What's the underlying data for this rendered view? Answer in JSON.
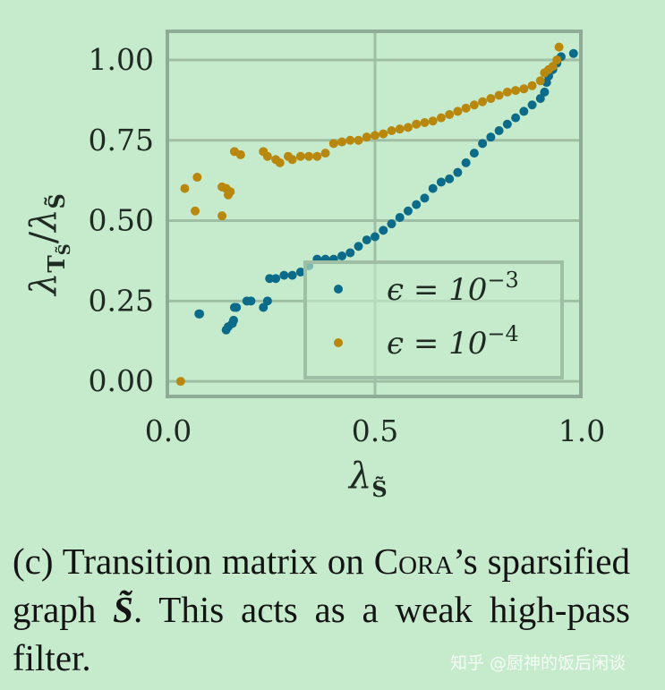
{
  "chart_data": {
    "type": "scatter",
    "xlabel": {
      "base": "λ",
      "sub": "S̃"
    },
    "ylabel": {
      "num_base": "λ",
      "num_sub": "T",
      "num_subsub": "S̃",
      "sep": "/",
      "den_base": "λ",
      "den_sub": "S̃"
    },
    "xlim": [
      0.0,
      1.0
    ],
    "ylim": [
      -0.047,
      1.089
    ],
    "xticks": [
      {
        "value": 0.0,
        "label": "0.0"
      },
      {
        "value": 0.5,
        "label": "0.5"
      },
      {
        "value": 1.0,
        "label": "1.0"
      }
    ],
    "yticks": [
      {
        "value": 0.0,
        "label": "0.00"
      },
      {
        "value": 0.25,
        "label": "0.25"
      },
      {
        "value": 0.5,
        "label": "0.50"
      },
      {
        "value": 0.75,
        "label": "0.75"
      },
      {
        "value": 1.0,
        "label": "1.00"
      }
    ],
    "grid": true,
    "legend_placement": "lower-right",
    "series": [
      {
        "name": "ϵ = 10^−3",
        "label_base": "ϵ = 10",
        "label_exp": "−3",
        "color": "#0b6b88",
        "points": [
          [
            0.074,
            0.21
          ],
          [
            0.076,
            0.21
          ],
          [
            0.14,
            0.16
          ],
          [
            0.145,
            0.17
          ],
          [
            0.155,
            0.18
          ],
          [
            0.158,
            0.19
          ],
          [
            0.16,
            0.23
          ],
          [
            0.165,
            0.23
          ],
          [
            0.19,
            0.25
          ],
          [
            0.2,
            0.25
          ],
          [
            0.23,
            0.23
          ],
          [
            0.24,
            0.25
          ],
          [
            0.245,
            0.32
          ],
          [
            0.26,
            0.32
          ],
          [
            0.28,
            0.33
          ],
          [
            0.3,
            0.33
          ],
          [
            0.32,
            0.34
          ],
          [
            0.34,
            0.36
          ],
          [
            0.36,
            0.38
          ],
          [
            0.38,
            0.38
          ],
          [
            0.4,
            0.38
          ],
          [
            0.42,
            0.39
          ],
          [
            0.44,
            0.4
          ],
          [
            0.46,
            0.42
          ],
          [
            0.48,
            0.44
          ],
          [
            0.5,
            0.45
          ],
          [
            0.52,
            0.47
          ],
          [
            0.54,
            0.49
          ],
          [
            0.56,
            0.51
          ],
          [
            0.58,
            0.53
          ],
          [
            0.6,
            0.55
          ],
          [
            0.62,
            0.57
          ],
          [
            0.64,
            0.6
          ],
          [
            0.66,
            0.62
          ],
          [
            0.68,
            0.63
          ],
          [
            0.7,
            0.65
          ],
          [
            0.72,
            0.68
          ],
          [
            0.74,
            0.71
          ],
          [
            0.76,
            0.74
          ],
          [
            0.78,
            0.76
          ],
          [
            0.8,
            0.78
          ],
          [
            0.82,
            0.8
          ],
          [
            0.84,
            0.82
          ],
          [
            0.86,
            0.84
          ],
          [
            0.88,
            0.86
          ],
          [
            0.9,
            0.88
          ],
          [
            0.91,
            0.9
          ],
          [
            0.915,
            0.93
          ],
          [
            0.92,
            0.95
          ],
          [
            0.93,
            0.97
          ],
          [
            0.94,
            0.99
          ],
          [
            0.95,
            1.01
          ],
          [
            0.98,
            1.02
          ]
        ]
      },
      {
        "name": "ϵ = 10^−4",
        "label_base": "ϵ = 10",
        "label_exp": "−4",
        "color": "#b8870d",
        "points": [
          [
            0.03,
            0.0
          ],
          [
            0.04,
            0.6
          ],
          [
            0.065,
            0.53
          ],
          [
            0.07,
            0.635
          ],
          [
            0.13,
            0.515
          ],
          [
            0.13,
            0.605
          ],
          [
            0.14,
            0.6
          ],
          [
            0.145,
            0.58
          ],
          [
            0.15,
            0.59
          ],
          [
            0.16,
            0.715
          ],
          [
            0.175,
            0.705
          ],
          [
            0.23,
            0.715
          ],
          [
            0.24,
            0.7
          ],
          [
            0.26,
            0.69
          ],
          [
            0.27,
            0.68
          ],
          [
            0.29,
            0.7
          ],
          [
            0.3,
            0.69
          ],
          [
            0.32,
            0.7
          ],
          [
            0.34,
            0.7
          ],
          [
            0.36,
            0.7
          ],
          [
            0.38,
            0.71
          ],
          [
            0.4,
            0.74
          ],
          [
            0.42,
            0.745
          ],
          [
            0.44,
            0.75
          ],
          [
            0.46,
            0.75
          ],
          [
            0.48,
            0.76
          ],
          [
            0.5,
            0.765
          ],
          [
            0.52,
            0.77
          ],
          [
            0.54,
            0.78
          ],
          [
            0.56,
            0.785
          ],
          [
            0.58,
            0.79
          ],
          [
            0.6,
            0.8
          ],
          [
            0.62,
            0.805
          ],
          [
            0.64,
            0.81
          ],
          [
            0.66,
            0.82
          ],
          [
            0.68,
            0.83
          ],
          [
            0.7,
            0.84
          ],
          [
            0.72,
            0.85
          ],
          [
            0.74,
            0.86
          ],
          [
            0.76,
            0.87
          ],
          [
            0.78,
            0.88
          ],
          [
            0.8,
            0.89
          ],
          [
            0.82,
            0.9
          ],
          [
            0.84,
            0.905
          ],
          [
            0.86,
            0.91
          ],
          [
            0.88,
            0.92
          ],
          [
            0.9,
            0.935
          ],
          [
            0.91,
            0.96
          ],
          [
            0.92,
            0.97
          ],
          [
            0.93,
            0.98
          ],
          [
            0.94,
            1.0
          ],
          [
            0.945,
            1.04
          ]
        ]
      }
    ]
  },
  "caption": {
    "prefix": "(c) Transition matrix on ",
    "cora_c": "C",
    "cora_rest": "ora",
    "after_cora": "’s sparsified graph ",
    "symbol": "S̃",
    "suffix": ". This acts as a weak high-pass filter."
  },
  "watermark": "知乎 @厨神的饭后闲谈",
  "colors": {
    "background": "#c6ebcc",
    "grid": "#9fbfa5",
    "spine": "#8fab96"
  }
}
